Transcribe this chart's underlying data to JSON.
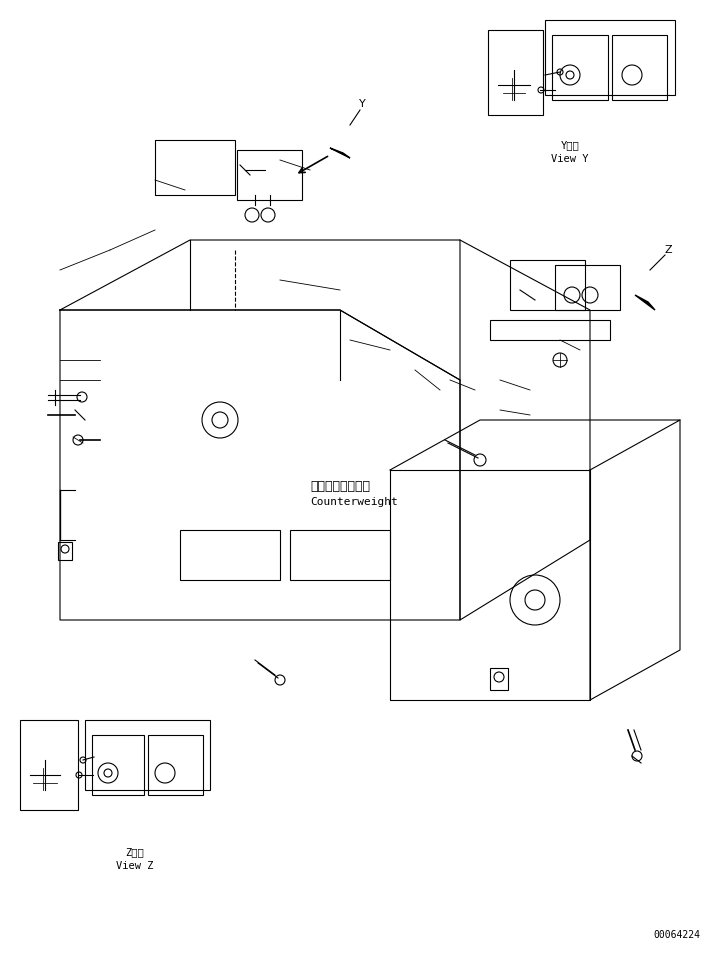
{
  "title": "",
  "background_color": "#ffffff",
  "line_color": "#000000",
  "text_color": "#000000",
  "part_number": "00064224",
  "view_y_label": "Y   視\nView Y",
  "view_z_label": "Z   視\nView Z",
  "counterweight_jp": "カウンタウェイト",
  "counterweight_en": "Counterweight"
}
